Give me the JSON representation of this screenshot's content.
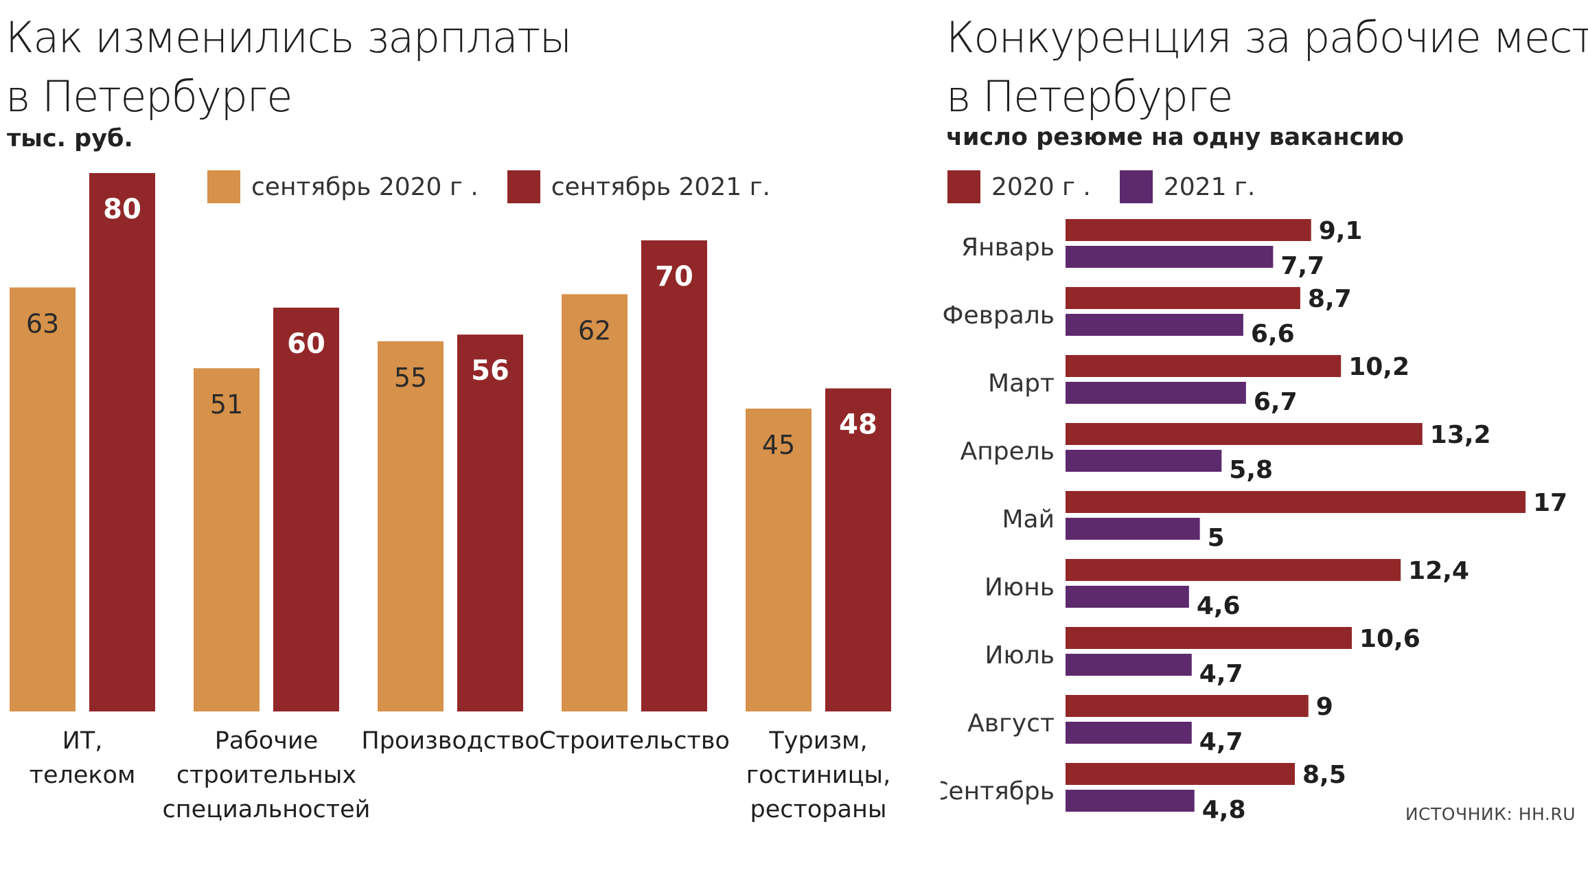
{
  "colors": {
    "orange_2020": "#D6914A",
    "red_2021": "#922729",
    "red_2020_comp": "#922729",
    "purple_2021": "#5D2A6E"
  },
  "left": {
    "title_line1": "Как изменились зарплаты",
    "title_line2": "в Петербурге",
    "subtitle": "тыс. руб.",
    "legend": [
      {
        "label": "сентябрь 2020 г .",
        "color": "#D6914A"
      },
      {
        "label": "сентябрь 2021 г.",
        "color": "#922729"
      }
    ]
  },
  "right": {
    "title_line1": "Конкуренция за рабочие места",
    "title_line2": "в Петербурге",
    "subtitle": "число резюме на одну вакансию",
    "legend": [
      {
        "label": "2020 г .",
        "color": "#922729"
      },
      {
        "label": "2021 г.",
        "color": "#5D2A6E"
      }
    ],
    "source": "ИСТОЧНИК: HH.RU"
  },
  "chart_data": [
    {
      "type": "bar",
      "orientation": "vertical",
      "title": "Как изменились зарплаты в Петербурге",
      "subtitle": "тыс. руб.",
      "categories": [
        [
          "ИТ,",
          "телеком"
        ],
        [
          "Рабочие",
          "строительных",
          "специальностей"
        ],
        [
          "Производство"
        ],
        [
          "Строительство"
        ],
        [
          "Туризм,",
          "гостиницы,",
          "рестораны"
        ]
      ],
      "series": [
        {
          "name": "сентябрь 2020 г .",
          "color": "#D6914A",
          "values": [
            63,
            51,
            55,
            62,
            45
          ],
          "labels": [
            "63",
            "51",
            "55",
            "62",
            "45"
          ]
        },
        {
          "name": "сентябрь 2021 г.",
          "color": "#922729",
          "values": [
            80,
            60,
            56,
            70,
            48
          ],
          "labels": [
            "80",
            "60",
            "56",
            "70",
            "48"
          ]
        }
      ],
      "ylim": [
        0,
        80
      ],
      "grid": false,
      "legend_position": "top"
    },
    {
      "type": "bar",
      "orientation": "horizontal",
      "title": "Конкуренция за рабочие места в Петербурге",
      "subtitle": "число резюме на одну вакансию",
      "categories": [
        "Январь",
        "Февраль",
        "Март",
        "Апрель",
        "Май",
        "Июнь",
        "Июль",
        "Август",
        "Сентябрь"
      ],
      "series": [
        {
          "name": "2020 г .",
          "color": "#922729",
          "values": [
            9.1,
            8.7,
            10.2,
            13.2,
            17,
            12.4,
            10.6,
            9,
            8.5
          ],
          "labels": [
            "9,1",
            "8,7",
            "10,2",
            "13,2",
            "17",
            "12,4",
            "10,6",
            "9",
            "8,5"
          ]
        },
        {
          "name": "2021 г.",
          "color": "#5D2A6E",
          "values": [
            7.7,
            6.6,
            6.7,
            5.8,
            5,
            4.6,
            4.7,
            4.7,
            4.8
          ],
          "labels": [
            "7,7",
            "6,6",
            "6,7",
            "5,8",
            "5",
            "4,6",
            "4,7",
            "4,7",
            "4,8"
          ]
        }
      ],
      "xlim": [
        0,
        17
      ],
      "grid": false,
      "legend_position": "top-left"
    }
  ]
}
